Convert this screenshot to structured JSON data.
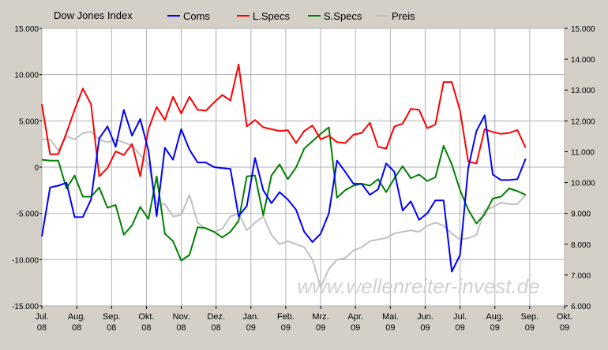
{
  "chart_data": {
    "type": "line",
    "title": "Dow Jones Index",
    "watermark": "www.wellenreiter-invest.de",
    "legend_position": "top",
    "grid": true,
    "x_ticks": [
      {
        "line1": "Jul.",
        "line2": "08"
      },
      {
        "line1": "Aug.",
        "line2": "08"
      },
      {
        "line1": "Sep.",
        "line2": "08"
      },
      {
        "line1": "Okt.",
        "line2": "08"
      },
      {
        "line1": "Nov.",
        "line2": "08"
      },
      {
        "line1": "Dez.",
        "line2": "08"
      },
      {
        "line1": "Jan.",
        "line2": "09"
      },
      {
        "line1": "Feb.",
        "line2": "09"
      },
      {
        "line1": "Mrz.",
        "line2": "09"
      },
      {
        "line1": "Apr.",
        "line2": "09"
      },
      {
        "line1": "Mai.",
        "line2": "09"
      },
      {
        "line1": "Jun.",
        "line2": "09"
      },
      {
        "line1": "Jul.",
        "line2": "09"
      },
      {
        "line1": "Aug.",
        "line2": "09"
      },
      {
        "line1": "Sep.",
        "line2": "09"
      },
      {
        "line1": "Okt.",
        "line2": "09"
      }
    ],
    "x_unit": "weeks",
    "y_left": {
      "min": -15000,
      "max": 15000,
      "ticks": [
        -15000,
        -10000,
        -5000,
        0,
        5000,
        10000,
        15000
      ],
      "tick_labels": [
        "-15.000",
        "-10.000",
        "-5.000",
        "0",
        "5.000",
        "10.000",
        "15.000"
      ]
    },
    "y_right": {
      "min": 6000,
      "max": 15000,
      "ticks": [
        6000,
        7000,
        8000,
        9000,
        10000,
        11000,
        12000,
        13000,
        14000,
        15000
      ],
      "tick_labels": [
        "6.000",
        "7.000",
        "8.000",
        "9.000",
        "10.000",
        "11.000",
        "12.000",
        "13.000",
        "14.000",
        "15.000"
      ]
    },
    "series": [
      {
        "name": "Coms",
        "axis": "left",
        "color": "#0000ff",
        "x": [
          0,
          1,
          2,
          3,
          4,
          5,
          6,
          7,
          8,
          9,
          10,
          11,
          12,
          13,
          14,
          15,
          16,
          17,
          18,
          19,
          20,
          21,
          22,
          23,
          24,
          25,
          26,
          27,
          28,
          29,
          30,
          31,
          32,
          33,
          34,
          35,
          36,
          37,
          38,
          39,
          40,
          41,
          42,
          43,
          44,
          45,
          46,
          47,
          48,
          49,
          50,
          51,
          52,
          53,
          54,
          55,
          56,
          57,
          58,
          59,
          60,
          61,
          62,
          63
        ],
        "values": [
          -7500,
          -2200,
          -2000,
          -1700,
          -5400,
          -5400,
          -3500,
          3100,
          4400,
          2200,
          6200,
          3400,
          5200,
          1800,
          -5300,
          2100,
          800,
          4100,
          1900,
          500,
          500,
          0,
          -100,
          -200,
          -5300,
          -4200,
          1000,
          -2500,
          -3900,
          -2700,
          -3500,
          -4600,
          -7000,
          -8100,
          -7200,
          -5000,
          700,
          -500,
          -1800,
          -1800,
          -3000,
          -2400,
          400,
          -500,
          -4700,
          -3700,
          -5700,
          -5000,
          -3600,
          -3600,
          -11300,
          -9500,
          -100,
          3900,
          5600,
          -800,
          -1400,
          -1400,
          -1300,
          900,
          null,
          null,
          null,
          null
        ]
      },
      {
        "name": "L.Specs",
        "axis": "left",
        "color": "#ff0000",
        "x": [
          0,
          1,
          2,
          3,
          4,
          5,
          6,
          7,
          8,
          9,
          10,
          11,
          12,
          13,
          14,
          15,
          16,
          17,
          18,
          19,
          20,
          21,
          22,
          23,
          24,
          25,
          26,
          27,
          28,
          29,
          30,
          31,
          32,
          33,
          34,
          35,
          36,
          37,
          38,
          39,
          40,
          41,
          42,
          43,
          44,
          45,
          46,
          47,
          48,
          49,
          50,
          51,
          52,
          53,
          54,
          55,
          56,
          57,
          58,
          59,
          60,
          61,
          62,
          63
        ],
        "values": [
          6800,
          1400,
          1400,
          3700,
          6200,
          8500,
          6800,
          -1000,
          -100,
          1700,
          1300,
          2500,
          -1000,
          4100,
          6500,
          5100,
          7600,
          5800,
          7600,
          6200,
          6100,
          7000,
          7800,
          7200,
          11100,
          4400,
          5100,
          4300,
          4100,
          3900,
          4000,
          2600,
          3900,
          4500,
          3000,
          3400,
          2700,
          2600,
          3500,
          3700,
          4800,
          2200,
          2000,
          4400,
          4700,
          6300,
          6200,
          4200,
          4600,
          9200,
          9200,
          6100,
          600,
          400,
          4100,
          3800,
          3600,
          3700,
          4000,
          2100,
          null,
          null,
          null,
          null
        ]
      },
      {
        "name": "S.Specs",
        "axis": "left",
        "color": "#008000",
        "x": [
          0,
          1,
          2,
          3,
          4,
          5,
          6,
          7,
          8,
          9,
          10,
          11,
          12,
          13,
          14,
          15,
          16,
          17,
          18,
          19,
          20,
          21,
          22,
          23,
          24,
          25,
          26,
          27,
          28,
          29,
          30,
          31,
          32,
          33,
          34,
          35,
          36,
          37,
          38,
          39,
          40,
          41,
          42,
          43,
          44,
          45,
          46,
          47,
          48,
          49,
          50,
          51,
          52,
          53,
          54,
          55,
          56,
          57,
          58,
          59,
          60,
          61,
          62,
          63
        ],
        "values": [
          800,
          700,
          700,
          -2300,
          -900,
          -3200,
          -3200,
          -2200,
          -4400,
          -4100,
          -7300,
          -6300,
          -4300,
          -5600,
          -1000,
          -7200,
          -8000,
          -10100,
          -9500,
          -6500,
          -6600,
          -7000,
          -7600,
          -7000,
          -5800,
          -1000,
          -900,
          -5200,
          -900,
          300,
          -1300,
          -50,
          2000,
          2800,
          3600,
          4300,
          -3300,
          -2500,
          -2000,
          -1800,
          -2000,
          -1300,
          -2700,
          -1200,
          100,
          -1200,
          -800,
          -1500,
          -1100,
          2300,
          300,
          -2500,
          -4600,
          -6100,
          -5100,
          -3400,
          -3200,
          -2300,
          -2600,
          -3000,
          null,
          null,
          null,
          null
        ]
      },
      {
        "name": "Preis",
        "axis": "right",
        "color": "#c0c0c0",
        "x": [
          0,
          1,
          2,
          3,
          4,
          5,
          6,
          7,
          8,
          9,
          10,
          11,
          12,
          13,
          14,
          15,
          16,
          17,
          18,
          19,
          20,
          21,
          22,
          23,
          24,
          25,
          26,
          27,
          28,
          29,
          30,
          31,
          32,
          33,
          34,
          35,
          36,
          37,
          38,
          39,
          40,
          41,
          42,
          43,
          44,
          45,
          46,
          47,
          48,
          49,
          50,
          51,
          52,
          53,
          54,
          55,
          56,
          57,
          58,
          59,
          60,
          61,
          62,
          63
        ],
        "values": [
          11400,
          11400,
          11050,
          11500,
          11400,
          11600,
          11650,
          11400,
          11300,
          11400,
          11300,
          11200,
          10900,
          10600,
          9300,
          9300,
          8900,
          8950,
          9600,
          8700,
          8500,
          8400,
          8500,
          8900,
          9000,
          8450,
          8700,
          8900,
          8300,
          8000,
          8100,
          8000,
          7900,
          7500,
          6600,
          7200,
          7500,
          7550,
          7800,
          7900,
          8100,
          8150,
          8200,
          8350,
          8400,
          8450,
          8400,
          8600,
          8700,
          8600,
          8350,
          8150,
          8200,
          8300,
          9100,
          9200,
          9350,
          9300,
          9300,
          9600,
          null,
          null,
          null,
          null
        ]
      }
    ]
  }
}
